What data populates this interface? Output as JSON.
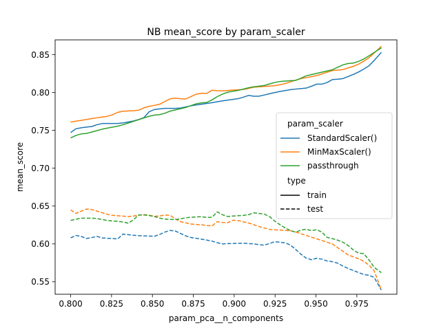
{
  "chart_data": {
    "type": "line",
    "title": "NB mean_score by param_scaler",
    "xlabel": "param_pca__n_components",
    "ylabel": "mean_score",
    "xlim": [
      0.7905,
      0.9995
    ],
    "ylim": [
      0.5335,
      0.8695
    ],
    "xticks": [
      "0.800",
      "0.825",
      "0.850",
      "0.875",
      "0.900",
      "0.925",
      "0.950",
      "0.975"
    ],
    "yticks": [
      "0.55",
      "0.60",
      "0.65",
      "0.70",
      "0.75",
      "0.80",
      "0.85"
    ],
    "grid": false,
    "legend": {
      "placement": "center-right",
      "hue_title": "param_scaler",
      "style_title": "type",
      "hue_entries": [
        {
          "label": "StandardScaler()",
          "color": "#1f77b4"
        },
        {
          "label": "MinMaxScaler()",
          "color": "#ff7f0e"
        },
        {
          "label": "passthrough",
          "color": "#2ca02c"
        }
      ],
      "style_entries": [
        {
          "label": "train",
          "dash": "solid"
        },
        {
          "label": "test",
          "dash": "dashed"
        }
      ]
    },
    "x": {
      "start": 0.8,
      "end": 0.99,
      "step": 0.0032
    },
    "series": [
      {
        "scaler": "StandardScaler()",
        "type": "train",
        "color": "#1f77b4",
        "keypoints": [
          [
            0.8,
            0.747
          ],
          [
            0.803,
            0.752
          ],
          [
            0.808,
            0.754
          ],
          [
            0.813,
            0.755
          ],
          [
            0.818,
            0.759
          ],
          [
            0.83,
            0.759
          ],
          [
            0.84,
            0.763
          ],
          [
            0.845,
            0.767
          ],
          [
            0.849,
            0.777
          ],
          [
            0.857,
            0.779
          ],
          [
            0.866,
            0.779
          ],
          [
            0.875,
            0.783
          ],
          [
            0.885,
            0.786
          ],
          [
            0.893,
            0.789
          ],
          [
            0.903,
            0.792
          ],
          [
            0.91,
            0.797
          ],
          [
            0.913,
            0.794
          ],
          [
            0.921,
            0.798
          ],
          [
            0.927,
            0.801
          ],
          [
            0.935,
            0.804
          ],
          [
            0.945,
            0.806
          ],
          [
            0.95,
            0.811
          ],
          [
            0.955,
            0.811
          ],
          [
            0.96,
            0.817
          ],
          [
            0.966,
            0.818
          ],
          [
            0.972,
            0.823
          ],
          [
            0.977,
            0.828
          ],
          [
            0.983,
            0.836
          ],
          [
            0.99,
            0.853
          ]
        ]
      },
      {
        "scaler": "MinMaxScaler()",
        "type": "train",
        "color": "#ff7f0e",
        "keypoints": [
          [
            0.8,
            0.761
          ],
          [
            0.806,
            0.763
          ],
          [
            0.814,
            0.766
          ],
          [
            0.824,
            0.769
          ],
          [
            0.83,
            0.775
          ],
          [
            0.838,
            0.776
          ],
          [
            0.84,
            0.775
          ],
          [
            0.846,
            0.781
          ],
          [
            0.854,
            0.784
          ],
          [
            0.862,
            0.793
          ],
          [
            0.87,
            0.791
          ],
          [
            0.876,
            0.797
          ],
          [
            0.879,
            0.8
          ],
          [
            0.882,
            0.797
          ],
          [
            0.886,
            0.803
          ],
          [
            0.892,
            0.802
          ],
          [
            0.898,
            0.803
          ],
          [
            0.906,
            0.804
          ],
          [
            0.912,
            0.807
          ],
          [
            0.925,
            0.809
          ],
          [
            0.93,
            0.811
          ],
          [
            0.94,
            0.818
          ],
          [
            0.95,
            0.822
          ],
          [
            0.96,
            0.829
          ],
          [
            0.966,
            0.83
          ],
          [
            0.975,
            0.836
          ],
          [
            0.982,
            0.845
          ],
          [
            0.99,
            0.861
          ]
        ]
      },
      {
        "scaler": "passthrough",
        "type": "train",
        "color": "#2ca02c",
        "keypoints": [
          [
            0.8,
            0.74
          ],
          [
            0.805,
            0.745
          ],
          [
            0.81,
            0.746
          ],
          [
            0.82,
            0.752
          ],
          [
            0.83,
            0.756
          ],
          [
            0.84,
            0.763
          ],
          [
            0.85,
            0.77
          ],
          [
            0.856,
            0.771
          ],
          [
            0.86,
            0.775
          ],
          [
            0.87,
            0.78
          ],
          [
            0.878,
            0.786
          ],
          [
            0.884,
            0.787
          ],
          [
            0.89,
            0.795
          ],
          [
            0.895,
            0.8
          ],
          [
            0.903,
            0.803
          ],
          [
            0.91,
            0.807
          ],
          [
            0.918,
            0.809
          ],
          [
            0.926,
            0.814
          ],
          [
            0.93,
            0.815
          ],
          [
            0.938,
            0.816
          ],
          [
            0.944,
            0.822
          ],
          [
            0.952,
            0.826
          ],
          [
            0.96,
            0.83
          ],
          [
            0.968,
            0.838
          ],
          [
            0.974,
            0.839
          ],
          [
            0.98,
            0.845
          ],
          [
            0.99,
            0.859
          ]
        ]
      },
      {
        "scaler": "StandardScaler()",
        "type": "test",
        "color": "#1f77b4",
        "keypoints": [
          [
            0.8,
            0.608
          ],
          [
            0.804,
            0.612
          ],
          [
            0.811,
            0.606
          ],
          [
            0.815,
            0.611
          ],
          [
            0.818,
            0.608
          ],
          [
            0.826,
            0.607
          ],
          [
            0.828,
            0.605
          ],
          [
            0.832,
            0.613
          ],
          [
            0.84,
            0.611
          ],
          [
            0.852,
            0.61
          ],
          [
            0.86,
            0.618
          ],
          [
            0.864,
            0.617
          ],
          [
            0.872,
            0.609
          ],
          [
            0.878,
            0.607
          ],
          [
            0.886,
            0.604
          ],
          [
            0.892,
            0.6
          ],
          [
            0.905,
            0.601
          ],
          [
            0.912,
            0.6
          ],
          [
            0.918,
            0.598
          ],
          [
            0.925,
            0.603
          ],
          [
            0.933,
            0.601
          ],
          [
            0.938,
            0.592
          ],
          [
            0.943,
            0.582
          ],
          [
            0.947,
            0.579
          ],
          [
            0.952,
            0.582
          ],
          [
            0.955,
            0.578
          ],
          [
            0.962,
            0.576
          ],
          [
            0.968,
            0.569
          ],
          [
            0.975,
            0.563
          ],
          [
            0.98,
            0.559
          ],
          [
            0.985,
            0.558
          ],
          [
            0.99,
            0.539
          ]
        ]
      },
      {
        "scaler": "MinMaxScaler()",
        "type": "test",
        "color": "#ff7f0e",
        "keypoints": [
          [
            0.8,
            0.645
          ],
          [
            0.804,
            0.639
          ],
          [
            0.808,
            0.646
          ],
          [
            0.812,
            0.646
          ],
          [
            0.818,
            0.642
          ],
          [
            0.824,
            0.638
          ],
          [
            0.83,
            0.637
          ],
          [
            0.836,
            0.636
          ],
          [
            0.842,
            0.638
          ],
          [
            0.846,
            0.639
          ],
          [
            0.852,
            0.636
          ],
          [
            0.86,
            0.639
          ],
          [
            0.866,
            0.63
          ],
          [
            0.874,
            0.626
          ],
          [
            0.882,
            0.625
          ],
          [
            0.886,
            0.623
          ],
          [
            0.89,
            0.63
          ],
          [
            0.895,
            0.627
          ],
          [
            0.9,
            0.632
          ],
          [
            0.91,
            0.627
          ],
          [
            0.915,
            0.623
          ],
          [
            0.922,
            0.619
          ],
          [
            0.93,
            0.618
          ],
          [
            0.936,
            0.617
          ],
          [
            0.94,
            0.614
          ],
          [
            0.95,
            0.607
          ],
          [
            0.96,
            0.6
          ],
          [
            0.97,
            0.585
          ],
          [
            0.978,
            0.579
          ],
          [
            0.985,
            0.568
          ],
          [
            0.99,
            0.539
          ]
        ]
      },
      {
        "scaler": "passthrough",
        "type": "test",
        "color": "#2ca02c",
        "keypoints": [
          [
            0.8,
            0.631
          ],
          [
            0.806,
            0.634
          ],
          [
            0.815,
            0.634
          ],
          [
            0.822,
            0.631
          ],
          [
            0.828,
            0.63
          ],
          [
            0.832,
            0.629
          ],
          [
            0.836,
            0.627
          ],
          [
            0.842,
            0.639
          ],
          [
            0.85,
            0.637
          ],
          [
            0.856,
            0.633
          ],
          [
            0.864,
            0.632
          ],
          [
            0.872,
            0.635
          ],
          [
            0.88,
            0.636
          ],
          [
            0.886,
            0.634
          ],
          [
            0.889,
            0.643
          ],
          [
            0.895,
            0.636
          ],
          [
            0.9,
            0.637
          ],
          [
            0.908,
            0.638
          ],
          [
            0.912,
            0.641
          ],
          [
            0.92,
            0.639
          ],
          [
            0.926,
            0.628
          ],
          [
            0.932,
            0.62
          ],
          [
            0.937,
            0.615
          ],
          [
            0.943,
            0.62
          ],
          [
            0.948,
            0.617
          ],
          [
            0.952,
            0.62
          ],
          [
            0.956,
            0.609
          ],
          [
            0.962,
            0.606
          ],
          [
            0.968,
            0.601
          ],
          [
            0.975,
            0.588
          ],
          [
            0.98,
            0.587
          ],
          [
            0.985,
            0.57
          ],
          [
            0.99,
            0.562
          ]
        ]
      }
    ]
  }
}
